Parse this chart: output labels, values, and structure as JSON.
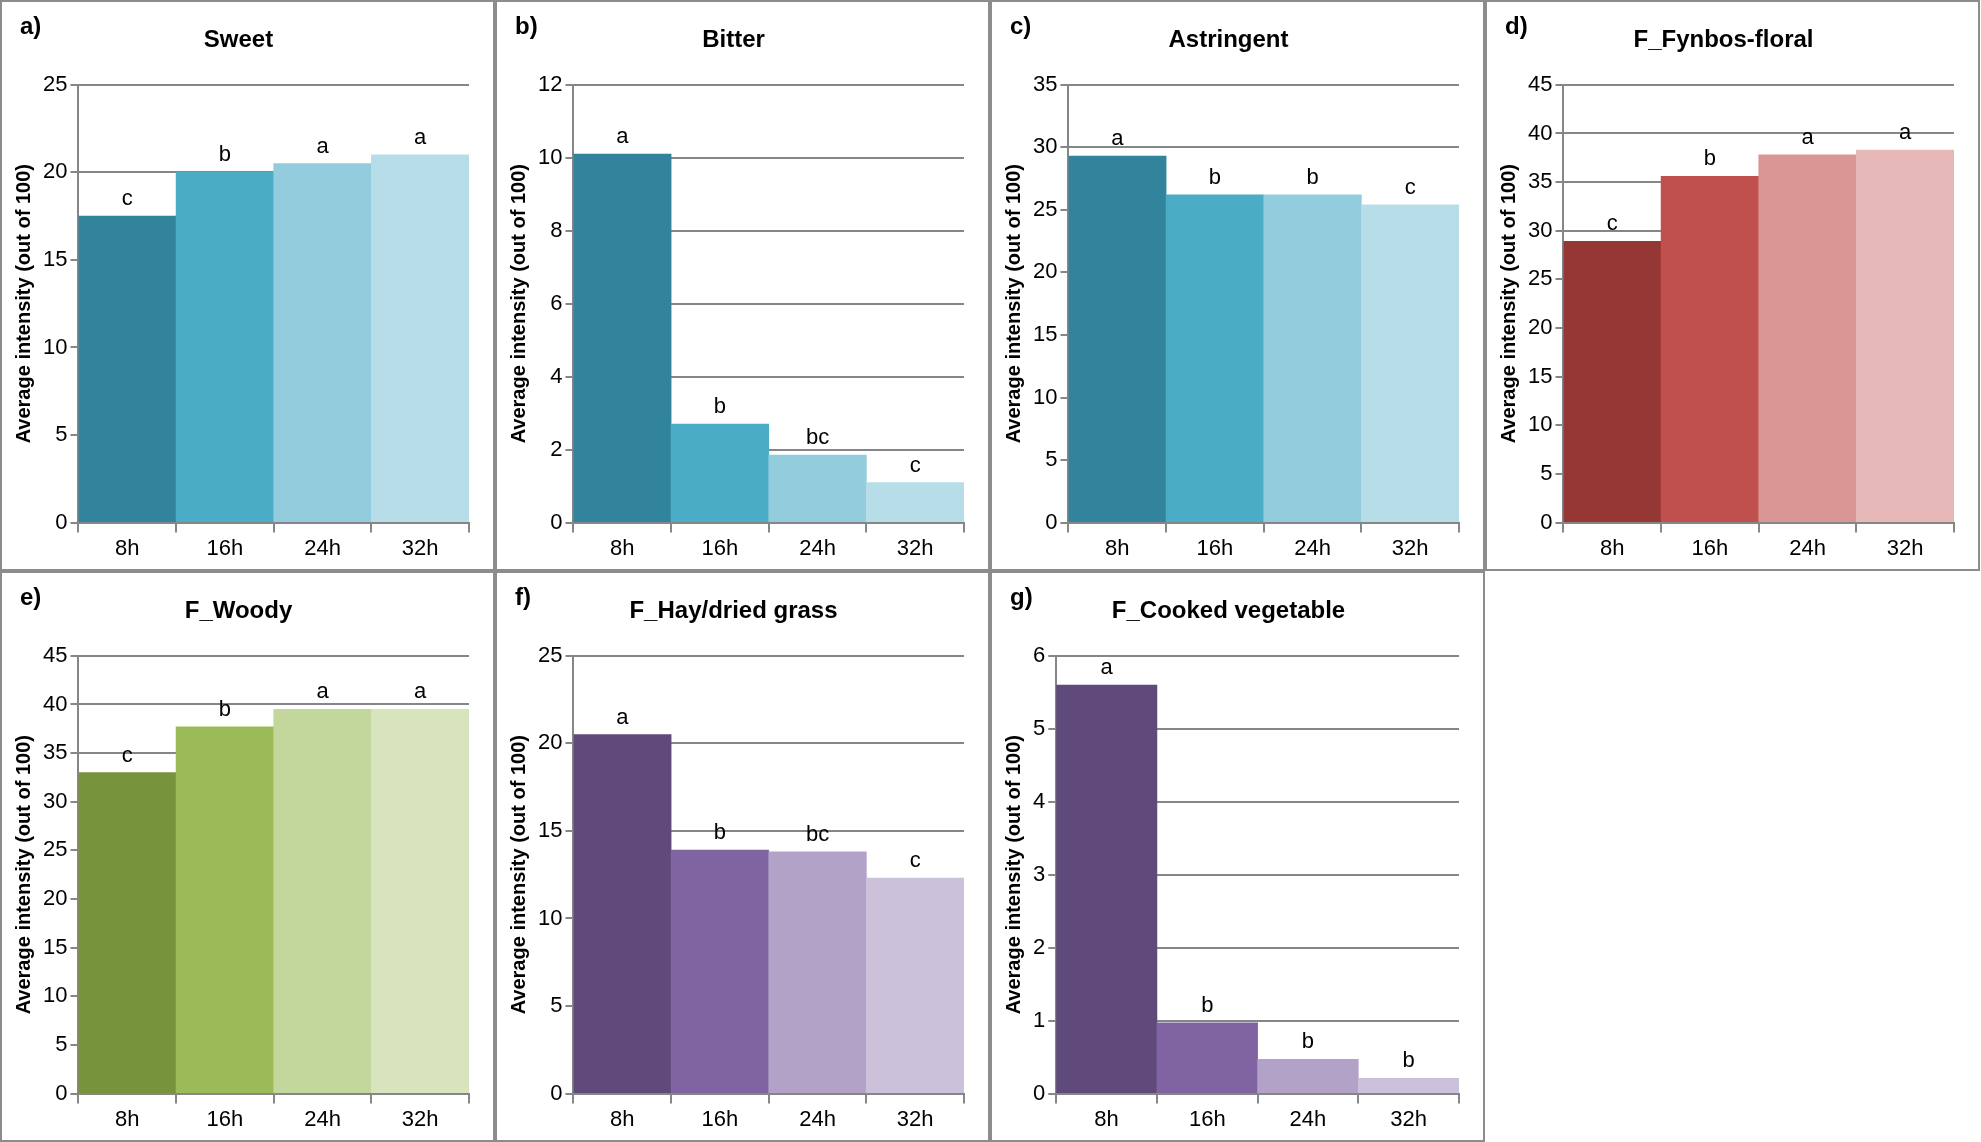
{
  "chart_data": [
    {
      "type": "bar",
      "title": "Sweet",
      "annotations": [
        "a)"
      ],
      "ylabel": "Average intensity (out of 100)",
      "categories": [
        "8h",
        "16h",
        "24h",
        "32h"
      ],
      "values": [
        17.5,
        20.0,
        20.5,
        21.0
      ],
      "colors": [
        "#31849b",
        "#4bacc6",
        "#93cddd",
        "#b7dee8"
      ],
      "value_labels": [
        "c",
        "b",
        "a",
        "a"
      ],
      "ylim": [
        0,
        25
      ],
      "yticks": [
        0,
        5,
        10,
        15,
        20,
        25
      ],
      "grid": "y"
    },
    {
      "type": "bar",
      "title": "Bitter",
      "annotations": [
        "b)"
      ],
      "ylabel": "Average intensity (out of 100)",
      "categories": [
        "8h",
        "16h",
        "24h",
        "32h"
      ],
      "values": [
        10.1,
        2.7,
        1.85,
        1.1
      ],
      "colors": [
        "#31849b",
        "#4bacc6",
        "#93cddd",
        "#b7dee8"
      ],
      "value_labels": [
        "a",
        "b",
        "bc",
        "c"
      ],
      "ylim": [
        0,
        12
      ],
      "yticks": [
        0,
        2,
        4,
        6,
        8,
        10,
        12
      ],
      "grid": "y"
    },
    {
      "type": "bar",
      "title": "Astringent",
      "annotations": [
        "c)"
      ],
      "ylabel": "Average intensity (out of 100)",
      "categories": [
        "8h",
        "16h",
        "24h",
        "32h"
      ],
      "values": [
        29.3,
        26.2,
        26.2,
        25.4
      ],
      "colors": [
        "#31849b",
        "#4bacc6",
        "#93cddd",
        "#b7dee8"
      ],
      "value_labels": [
        "a",
        "b",
        "b",
        "c"
      ],
      "ylim": [
        0,
        35
      ],
      "yticks": [
        0,
        5,
        10,
        15,
        20,
        25,
        30,
        35
      ],
      "grid": "y"
    },
    {
      "type": "bar",
      "title": "F_Fynbos-floral",
      "annotations": [
        "d)"
      ],
      "ylabel": "Average intensity (out of 100)",
      "categories": [
        "8h",
        "16h",
        "24h",
        "32h"
      ],
      "values": [
        28.9,
        35.6,
        37.8,
        38.3
      ],
      "colors": [
        "#953735",
        "#c0504d",
        "#d99694",
        "#e6b9b8"
      ],
      "value_labels": [
        "c",
        "b",
        "a",
        "a"
      ],
      "ylim": [
        0,
        45
      ],
      "yticks": [
        0,
        5,
        10,
        15,
        20,
        25,
        30,
        35,
        40,
        45
      ],
      "grid": "y"
    },
    {
      "type": "bar",
      "title": "F_Woody",
      "annotations": [
        "e)"
      ],
      "ylabel": "Average intensity (out of 100)",
      "categories": [
        "8h",
        "16h",
        "24h",
        "32h"
      ],
      "values": [
        33.0,
        37.7,
        39.5,
        39.5
      ],
      "colors": [
        "#77933c",
        "#9bbb59",
        "#c3d69b",
        "#d7e4bd"
      ],
      "value_labels": [
        "c",
        "b",
        "a",
        "a"
      ],
      "ylim": [
        0,
        45
      ],
      "yticks": [
        0,
        5,
        10,
        15,
        20,
        25,
        30,
        35,
        40,
        45
      ],
      "grid": "y"
    },
    {
      "type": "bar",
      "title": "F_Hay/dried grass",
      "annotations": [
        "f)"
      ],
      "ylabel": "Average intensity (out of 100)",
      "categories": [
        "8h",
        "16h",
        "24h",
        "32h"
      ],
      "values": [
        20.5,
        13.9,
        13.8,
        12.3
      ],
      "colors": [
        "#604a7b",
        "#8064a2",
        "#b3a2c7",
        "#ccc1da"
      ],
      "value_labels": [
        "a",
        "b",
        "bc",
        "c"
      ],
      "ylim": [
        0,
        25
      ],
      "yticks": [
        0,
        5,
        10,
        15,
        20,
        25
      ],
      "grid": "y"
    },
    {
      "type": "bar",
      "title": "F_Cooked vegetable",
      "annotations": [
        "g)"
      ],
      "ylabel": "Average intensity (out of 100)",
      "categories": [
        "8h",
        "16h",
        "24h",
        "32h"
      ],
      "values": [
        5.6,
        0.97,
        0.47,
        0.21
      ],
      "colors": [
        "#604a7b",
        "#8064a2",
        "#b3a2c7",
        "#ccc1da"
      ],
      "value_labels": [
        "a",
        "b",
        "b",
        "b"
      ],
      "ylim": [
        0,
        6
      ],
      "yticks": [
        0,
        1,
        2,
        3,
        4,
        5,
        6
      ],
      "grid": "y"
    }
  ]
}
